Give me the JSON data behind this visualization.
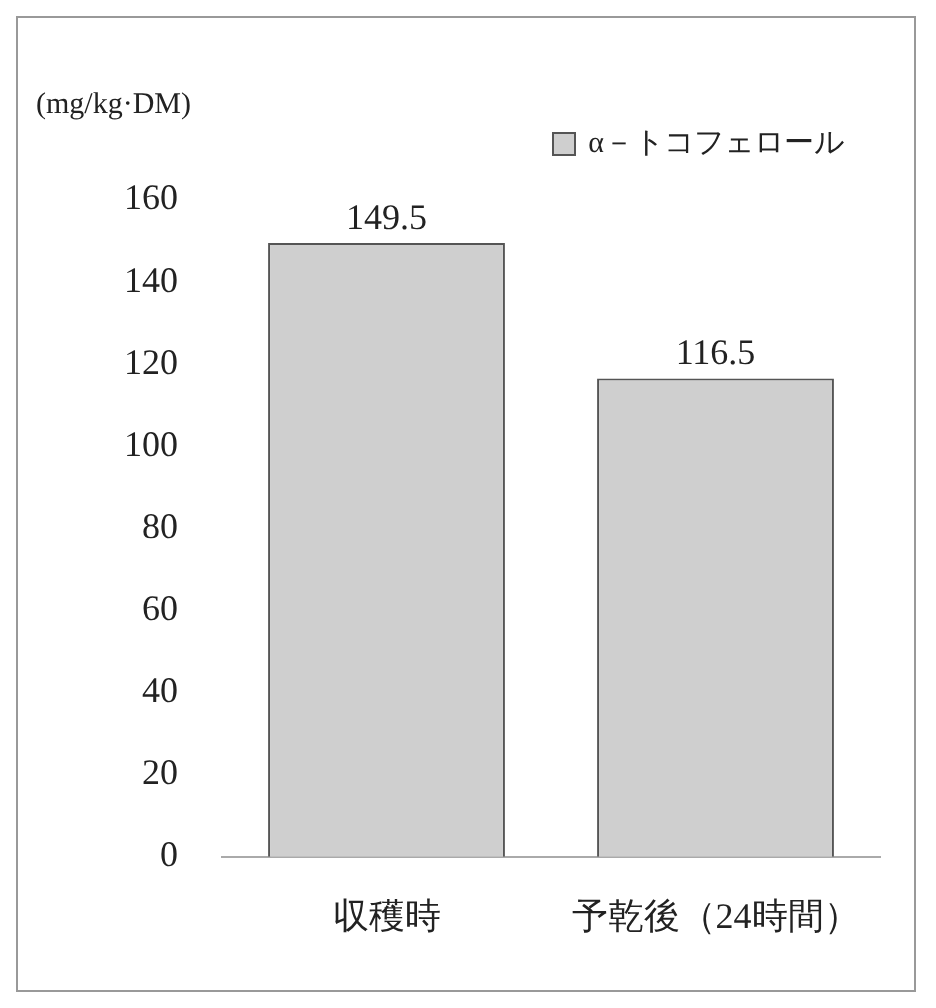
{
  "chart_data": {
    "type": "bar",
    "ylabel": "(mg/kg·DM)",
    "categories": [
      "収穫時",
      "予乾後（24時間）"
    ],
    "series": [
      {
        "name": "α－トコフェロール",
        "color": "#cfcfcf",
        "values": [
          149.5,
          116.5
        ]
      }
    ],
    "ylim": [
      0,
      160
    ],
    "yticks": [
      0,
      20,
      40,
      60,
      80,
      100,
      120,
      140,
      160
    ],
    "grid": false,
    "legend": "top right",
    "data_labels": true
  }
}
